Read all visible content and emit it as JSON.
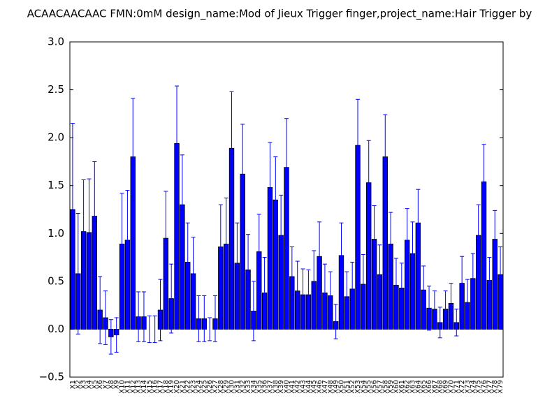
{
  "chart_data": {
    "type": "bar",
    "title": "ACAACAACAAC  FMN:0mM  design_name:Mod of Jieux Trigger finger,project_name:Hair Trigger by",
    "categories": [
      "X1",
      "X2",
      "X3",
      "X4",
      "X5",
      "X6",
      "X7",
      "X8",
      "X9",
      "X10",
      "X11",
      "X12",
      "X13",
      "X14",
      "X15",
      "X16",
      "X17",
      "X18",
      "X19",
      "X20",
      "X21",
      "X22",
      "X23",
      "X24",
      "X25",
      "X26",
      "X27",
      "X28",
      "X29",
      "X30",
      "X31",
      "X32",
      "X33",
      "X34",
      "X35",
      "X36",
      "X37",
      "X38",
      "X39",
      "X40",
      "X41",
      "X42",
      "X43",
      "X44",
      "X45",
      "X46",
      "X47",
      "X48",
      "X49",
      "X50",
      "X51",
      "X52",
      "X53",
      "X54",
      "X55",
      "X56",
      "X57",
      "X58",
      "X59",
      "X60",
      "X61",
      "X62",
      "X63",
      "X64",
      "X65",
      "X66",
      "X67",
      "X68",
      "X69",
      "X70",
      "X71",
      "X72",
      "X73",
      "X74",
      "X75",
      "X76",
      "X77",
      "X78",
      "X79"
    ],
    "values": [
      1.25,
      0.58,
      1.02,
      1.01,
      1.18,
      0.2,
      0.12,
      -0.08,
      -0.06,
      0.89,
      0.93,
      1.8,
      0.13,
      0.13,
      0.0,
      0.0,
      0.2,
      0.95,
      0.32,
      1.94,
      1.3,
      0.7,
      0.58,
      0.11,
      0.11,
      0.0,
      0.11,
      0.86,
      0.89,
      1.89,
      0.69,
      1.62,
      0.62,
      0.19,
      0.81,
      0.38,
      1.48,
      1.35,
      0.98,
      1.69,
      0.55,
      0.4,
      0.36,
      0.36,
      0.5,
      0.76,
      0.38,
      0.35,
      0.08,
      0.77,
      0.34,
      0.42,
      1.92,
      0.47,
      1.53,
      0.94,
      0.57,
      1.8,
      0.89,
      0.46,
      0.43,
      0.93,
      0.79,
      1.11,
      0.41,
      0.22,
      0.21,
      0.07,
      0.21,
      0.27,
      0.07,
      0.48,
      0.28,
      0.53,
      0.98,
      1.54,
      0.51,
      0.94,
      0.57
    ],
    "errors": [
      0.9,
      0.63,
      0.54,
      0.56,
      0.57,
      0.35,
      0.28,
      0.18,
      0.18,
      0.53,
      0.52,
      0.61,
      0.26,
      0.26,
      0.14,
      0.14,
      0.32,
      0.49,
      0.36,
      0.6,
      0.52,
      0.41,
      0.38,
      0.24,
      0.24,
      0.12,
      0.24,
      0.44,
      0.48,
      0.59,
      0.42,
      0.52,
      0.37,
      0.31,
      0.39,
      0.37,
      0.47,
      0.45,
      0.42,
      0.51,
      0.31,
      0.31,
      0.27,
      0.26,
      0.32,
      0.36,
      0.3,
      0.25,
      0.18,
      0.34,
      0.26,
      0.28,
      0.48,
      0.31,
      0.44,
      0.35,
      0.31,
      0.44,
      0.33,
      0.28,
      0.26,
      0.33,
      0.33,
      0.35,
      0.25,
      0.23,
      0.19,
      0.16,
      0.19,
      0.21,
      0.14,
      0.28,
      0.24,
      0.26,
      0.32,
      0.39,
      0.24,
      0.3,
      0.29
    ],
    "color": "#0000ff",
    "ylim": [
      -0.5,
      3.0
    ],
    "yticks": [
      {
        "value": -0.5,
        "label": "−0.5"
      },
      {
        "value": 0,
        "label": "0.0"
      },
      0.5,
      {
        "value": 1,
        "label": "1.0"
      },
      1.5,
      {
        "value": 2,
        "label": "2.0"
      },
      2.5,
      {
        "value": 3,
        "label": "3.0"
      }
    ]
  }
}
